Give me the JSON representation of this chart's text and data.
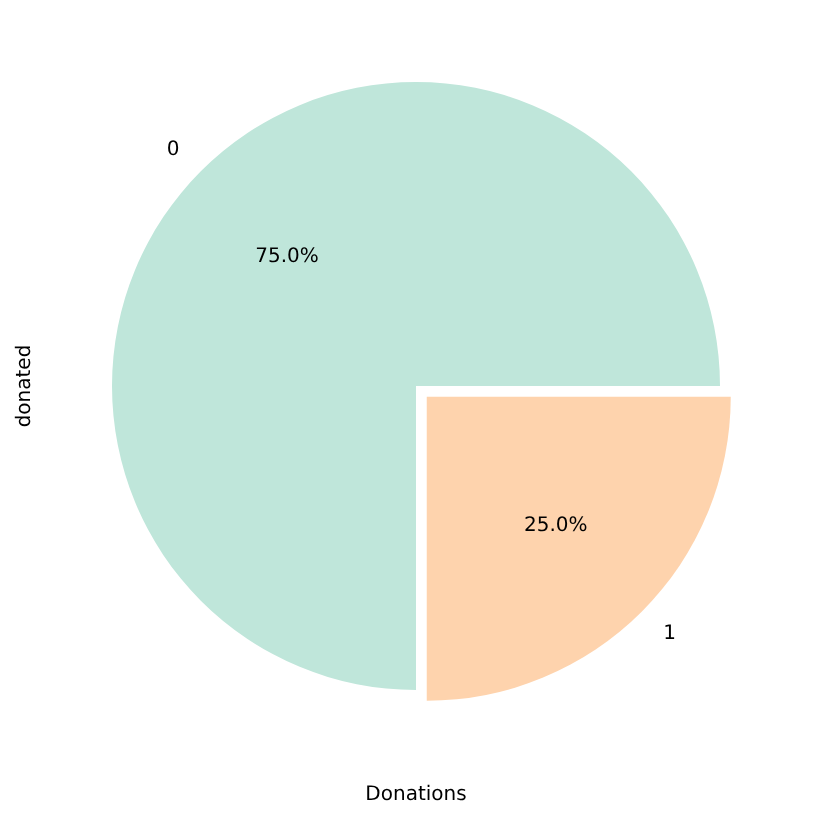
{
  "chart_data": {
    "type": "pie",
    "xlabel": "Donations",
    "ylabel": "donated",
    "categories": [
      "0",
      "1"
    ],
    "values": [
      75,
      25
    ],
    "colors": [
      "#bfe6da",
      "#fed3ad"
    ],
    "value_labels": [
      "75.0%",
      "25.0%"
    ]
  }
}
